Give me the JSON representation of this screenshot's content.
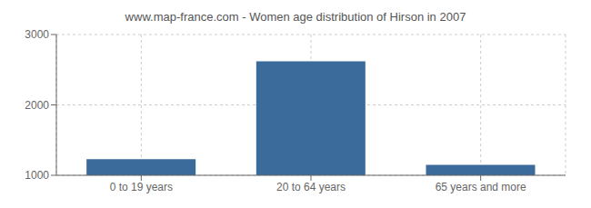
{
  "chart_data": {
    "type": "bar",
    "title": "www.map-france.com - Women age distribution of Hirson in 2007",
    "categories": [
      "0 to 19 years",
      "20 to 64 years",
      "65 years and more"
    ],
    "values": [
      1230,
      2620,
      1150
    ],
    "color": "#3a6b9b",
    "ylim": [
      1000,
      3000
    ],
    "yticks": [
      1000,
      2000,
      3000
    ],
    "grid": true
  }
}
